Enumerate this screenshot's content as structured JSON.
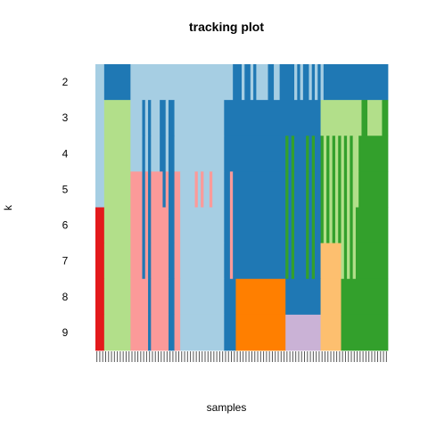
{
  "chart_data": {
    "type": "heatmap",
    "title": "tracking plot",
    "xlabel": "samples",
    "ylabel": "k",
    "rows": [
      "2",
      "3",
      "4",
      "5",
      "6",
      "7",
      "8",
      "9"
    ],
    "n_samples": 100,
    "palette": {
      "light_blue": "#A6CEE3",
      "blue": "#1F78B4",
      "light_green": "#B2DF8A",
      "green": "#33A02C",
      "pink": "#FB9A99",
      "red": "#E31A1C",
      "light_orange": "#FDBF6F",
      "orange": "#FF7F00",
      "lavender": "#CAB2D6"
    },
    "base_bands": [
      {
        "from": 0,
        "to": 3,
        "rows": [
          {
            "from": 0,
            "to": 4,
            "color": "light_blue"
          },
          {
            "from": 4,
            "to": 8,
            "color": "red"
          }
        ]
      },
      {
        "from": 3,
        "to": 12,
        "rows": [
          {
            "from": 0,
            "to": 1,
            "color": "blue"
          },
          {
            "from": 1,
            "to": 8,
            "color": "light_green"
          }
        ]
      },
      {
        "from": 12,
        "to": 29,
        "rows": [
          {
            "from": 0,
            "to": 3,
            "color": "light_blue"
          },
          {
            "from": 3,
            "to": 8,
            "color": "pink"
          }
        ]
      },
      {
        "from": 29,
        "to": 44,
        "rows": [
          {
            "from": 0,
            "to": 8,
            "color": "light_blue"
          }
        ]
      },
      {
        "from": 44,
        "to": 48,
        "rows": [
          {
            "from": 0,
            "to": 1,
            "color": "light_blue"
          },
          {
            "from": 1,
            "to": 8,
            "color": "blue"
          }
        ]
      },
      {
        "from": 48,
        "to": 65,
        "rows": [
          {
            "from": 0,
            "to": 6,
            "color": "blue"
          },
          {
            "from": 6,
            "to": 8,
            "color": "orange"
          }
        ]
      },
      {
        "from": 65,
        "to": 69,
        "rows": [
          {
            "from": 0,
            "to": 6,
            "color": "blue"
          },
          {
            "from": 6,
            "to": 7,
            "color": "blue"
          },
          {
            "from": 7,
            "to": 8,
            "color": "lavender"
          }
        ]
      },
      {
        "from": 69,
        "to": 77,
        "rows": [
          {
            "from": 0,
            "to": 6,
            "color": "blue"
          },
          {
            "from": 6,
            "to": 7,
            "color": "blue"
          },
          {
            "from": 7,
            "to": 8,
            "color": "lavender"
          }
        ]
      },
      {
        "from": 77,
        "to": 81,
        "rows": [
          {
            "from": 0,
            "to": 1,
            "color": "blue"
          },
          {
            "from": 1,
            "to": 2,
            "color": "light_green"
          },
          {
            "from": 2,
            "to": 5,
            "color": "green"
          },
          {
            "from": 5,
            "to": 8,
            "color": "light_orange"
          }
        ]
      },
      {
        "from": 81,
        "to": 84,
        "rows": [
          {
            "from": 0,
            "to": 1,
            "color": "blue"
          },
          {
            "from": 1,
            "to": 2,
            "color": "light_green"
          },
          {
            "from": 2,
            "to": 5,
            "color": "green"
          },
          {
            "from": 5,
            "to": 8,
            "color": "light_orange"
          }
        ]
      },
      {
        "from": 84,
        "to": 88,
        "rows": [
          {
            "from": 0,
            "to": 1,
            "color": "blue"
          },
          {
            "from": 1,
            "to": 2,
            "color": "light_green"
          },
          {
            "from": 2,
            "to": 6,
            "color": "green"
          },
          {
            "from": 6,
            "to": 8,
            "color": "green"
          }
        ]
      },
      {
        "from": 88,
        "to": 100,
        "rows": [
          {
            "from": 0,
            "to": 1,
            "color": "blue"
          },
          {
            "from": 1,
            "to": 2,
            "color": "light_green"
          },
          {
            "from": 2,
            "to": 8,
            "color": "green"
          }
        ]
      }
    ],
    "streaks": [
      {
        "col": 16,
        "rows": [
          1,
          2,
          3,
          4,
          5
        ],
        "color": "blue"
      },
      {
        "col": 18,
        "rows": [
          1,
          2,
          3,
          4,
          5,
          6,
          7
        ],
        "color": "blue"
      },
      {
        "col": 22,
        "rows": [
          1,
          2
        ],
        "color": "blue"
      },
      {
        "col": 23,
        "rows": [
          1,
          2,
          3
        ],
        "color": "blue"
      },
      {
        "col": 25,
        "rows": [
          1,
          2,
          3,
          4,
          5,
          6,
          7
        ],
        "color": "blue"
      },
      {
        "col": 26,
        "rows": [
          1,
          2,
          3,
          4,
          5,
          6,
          7
        ],
        "color": "blue"
      },
      {
        "col": 34,
        "rows": [
          3
        ],
        "color": "pink"
      },
      {
        "col": 36,
        "rows": [
          3
        ],
        "color": "pink"
      },
      {
        "col": 39,
        "rows": [
          3
        ],
        "color": "pink"
      },
      {
        "col": 46,
        "rows": [
          3,
          4,
          5
        ],
        "color": "pink"
      },
      {
        "col": 47,
        "rows": [
          0
        ],
        "color": "blue"
      },
      {
        "col": 48,
        "rows": [
          0
        ],
        "color": "blue"
      },
      {
        "col": 50,
        "rows": [
          0
        ],
        "color": "light_blue"
      },
      {
        "col": 53,
        "rows": [
          0
        ],
        "color": "light_blue"
      },
      {
        "col": 55,
        "rows": [
          0
        ],
        "color": "light_blue"
      },
      {
        "col": 56,
        "rows": [
          0
        ],
        "color": "light_blue"
      },
      {
        "col": 57,
        "rows": [
          0
        ],
        "color": "light_blue"
      },
      {
        "col": 58,
        "rows": [
          0
        ],
        "color": "light_blue"
      },
      {
        "col": 61,
        "rows": [
          0
        ],
        "color": "light_blue"
      },
      {
        "col": 62,
        "rows": [
          0
        ],
        "color": "light_blue"
      },
      {
        "col": 65,
        "rows": [
          2,
          3,
          4,
          5
        ],
        "color": "green"
      },
      {
        "col": 67,
        "rows": [
          2,
          3,
          4,
          5
        ],
        "color": "green"
      },
      {
        "col": 68,
        "rows": [
          0
        ],
        "color": "light_blue"
      },
      {
        "col": 70,
        "rows": [
          0
        ],
        "color": "light_blue"
      },
      {
        "col": 72,
        "rows": [
          2,
          3,
          4,
          5
        ],
        "color": "green"
      },
      {
        "col": 73,
        "rows": [
          0
        ],
        "color": "light_blue"
      },
      {
        "col": 74,
        "rows": [
          2,
          3,
          4,
          5
        ],
        "color": "green"
      },
      {
        "col": 75,
        "rows": [
          0
        ],
        "color": "light_blue"
      },
      {
        "col": 77,
        "rows": [
          0
        ],
        "color": "light_blue"
      },
      {
        "col": 78,
        "rows": [
          1,
          2,
          3,
          4
        ],
        "color": "light_green"
      },
      {
        "col": 80,
        "rows": [
          2,
          3,
          4
        ],
        "color": "light_green"
      },
      {
        "col": 82,
        "rows": [
          2,
          3,
          4
        ],
        "color": "light_green"
      },
      {
        "col": 84,
        "rows": [
          2,
          3,
          4,
          5
        ],
        "color": "light_green"
      },
      {
        "col": 86,
        "rows": [
          2,
          3,
          4,
          5
        ],
        "color": "light_green"
      },
      {
        "col": 88,
        "rows": [
          2,
          3,
          4,
          5
        ],
        "color": "light_green"
      },
      {
        "col": 89,
        "rows": [
          2,
          3
        ],
        "color": "light_green"
      },
      {
        "col": 91,
        "rows": [
          1
        ],
        "color": "green"
      },
      {
        "col": 92,
        "rows": [
          1
        ],
        "color": "green"
      },
      {
        "col": 98,
        "rows": [
          1
        ],
        "color": "green"
      },
      {
        "col": 99,
        "rows": [
          1
        ],
        "color": "green"
      }
    ]
  }
}
